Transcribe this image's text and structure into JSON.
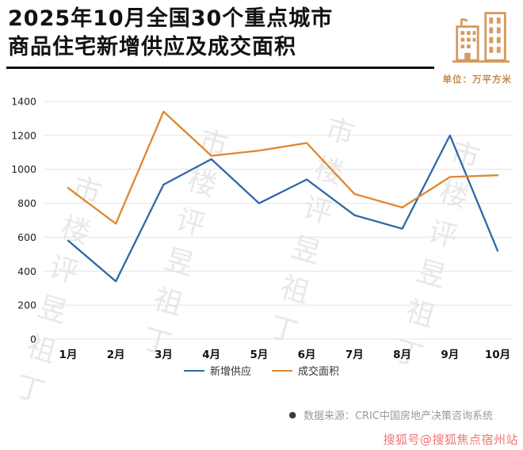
{
  "header": {
    "title_line1": "2025年10月全国30个重点城市",
    "title_line2": "商品住宅新增供应及成交面积",
    "unit_label": "单位：万平方米",
    "icon": "building-icon",
    "icon_color": "#d69a5e"
  },
  "chart_data": {
    "type": "line",
    "categories": [
      "1月",
      "2月",
      "3月",
      "4月",
      "5月",
      "6月",
      "7月",
      "8月",
      "9月",
      "10月"
    ],
    "series": [
      {
        "name": "新增供应",
        "color": "#2e68a8",
        "values": [
          580,
          340,
          910,
          1060,
          800,
          940,
          730,
          650,
          1200,
          520
        ]
      },
      {
        "name": "成交面积",
        "color": "#e0862f",
        "values": [
          890,
          680,
          1340,
          1080,
          1110,
          1155,
          855,
          775,
          955,
          965
        ]
      }
    ],
    "ylim": [
      0,
      1400
    ],
    "ytick_step": 200,
    "grid": "horizontal",
    "legend_position": "bottom-center",
    "title": "2025年10月全国30个重点城市商品住宅新增供应及成交面积",
    "xlabel": "",
    "ylabel": "万平方米"
  },
  "footer": {
    "bullet": "●",
    "source": "数据来源：CRIC中国房地产决策咨询系统",
    "sohu_watermark": "搜狐号@搜狐焦点宿州站"
  },
  "background_watermark": {
    "text": "丁祖昱评楼市"
  }
}
